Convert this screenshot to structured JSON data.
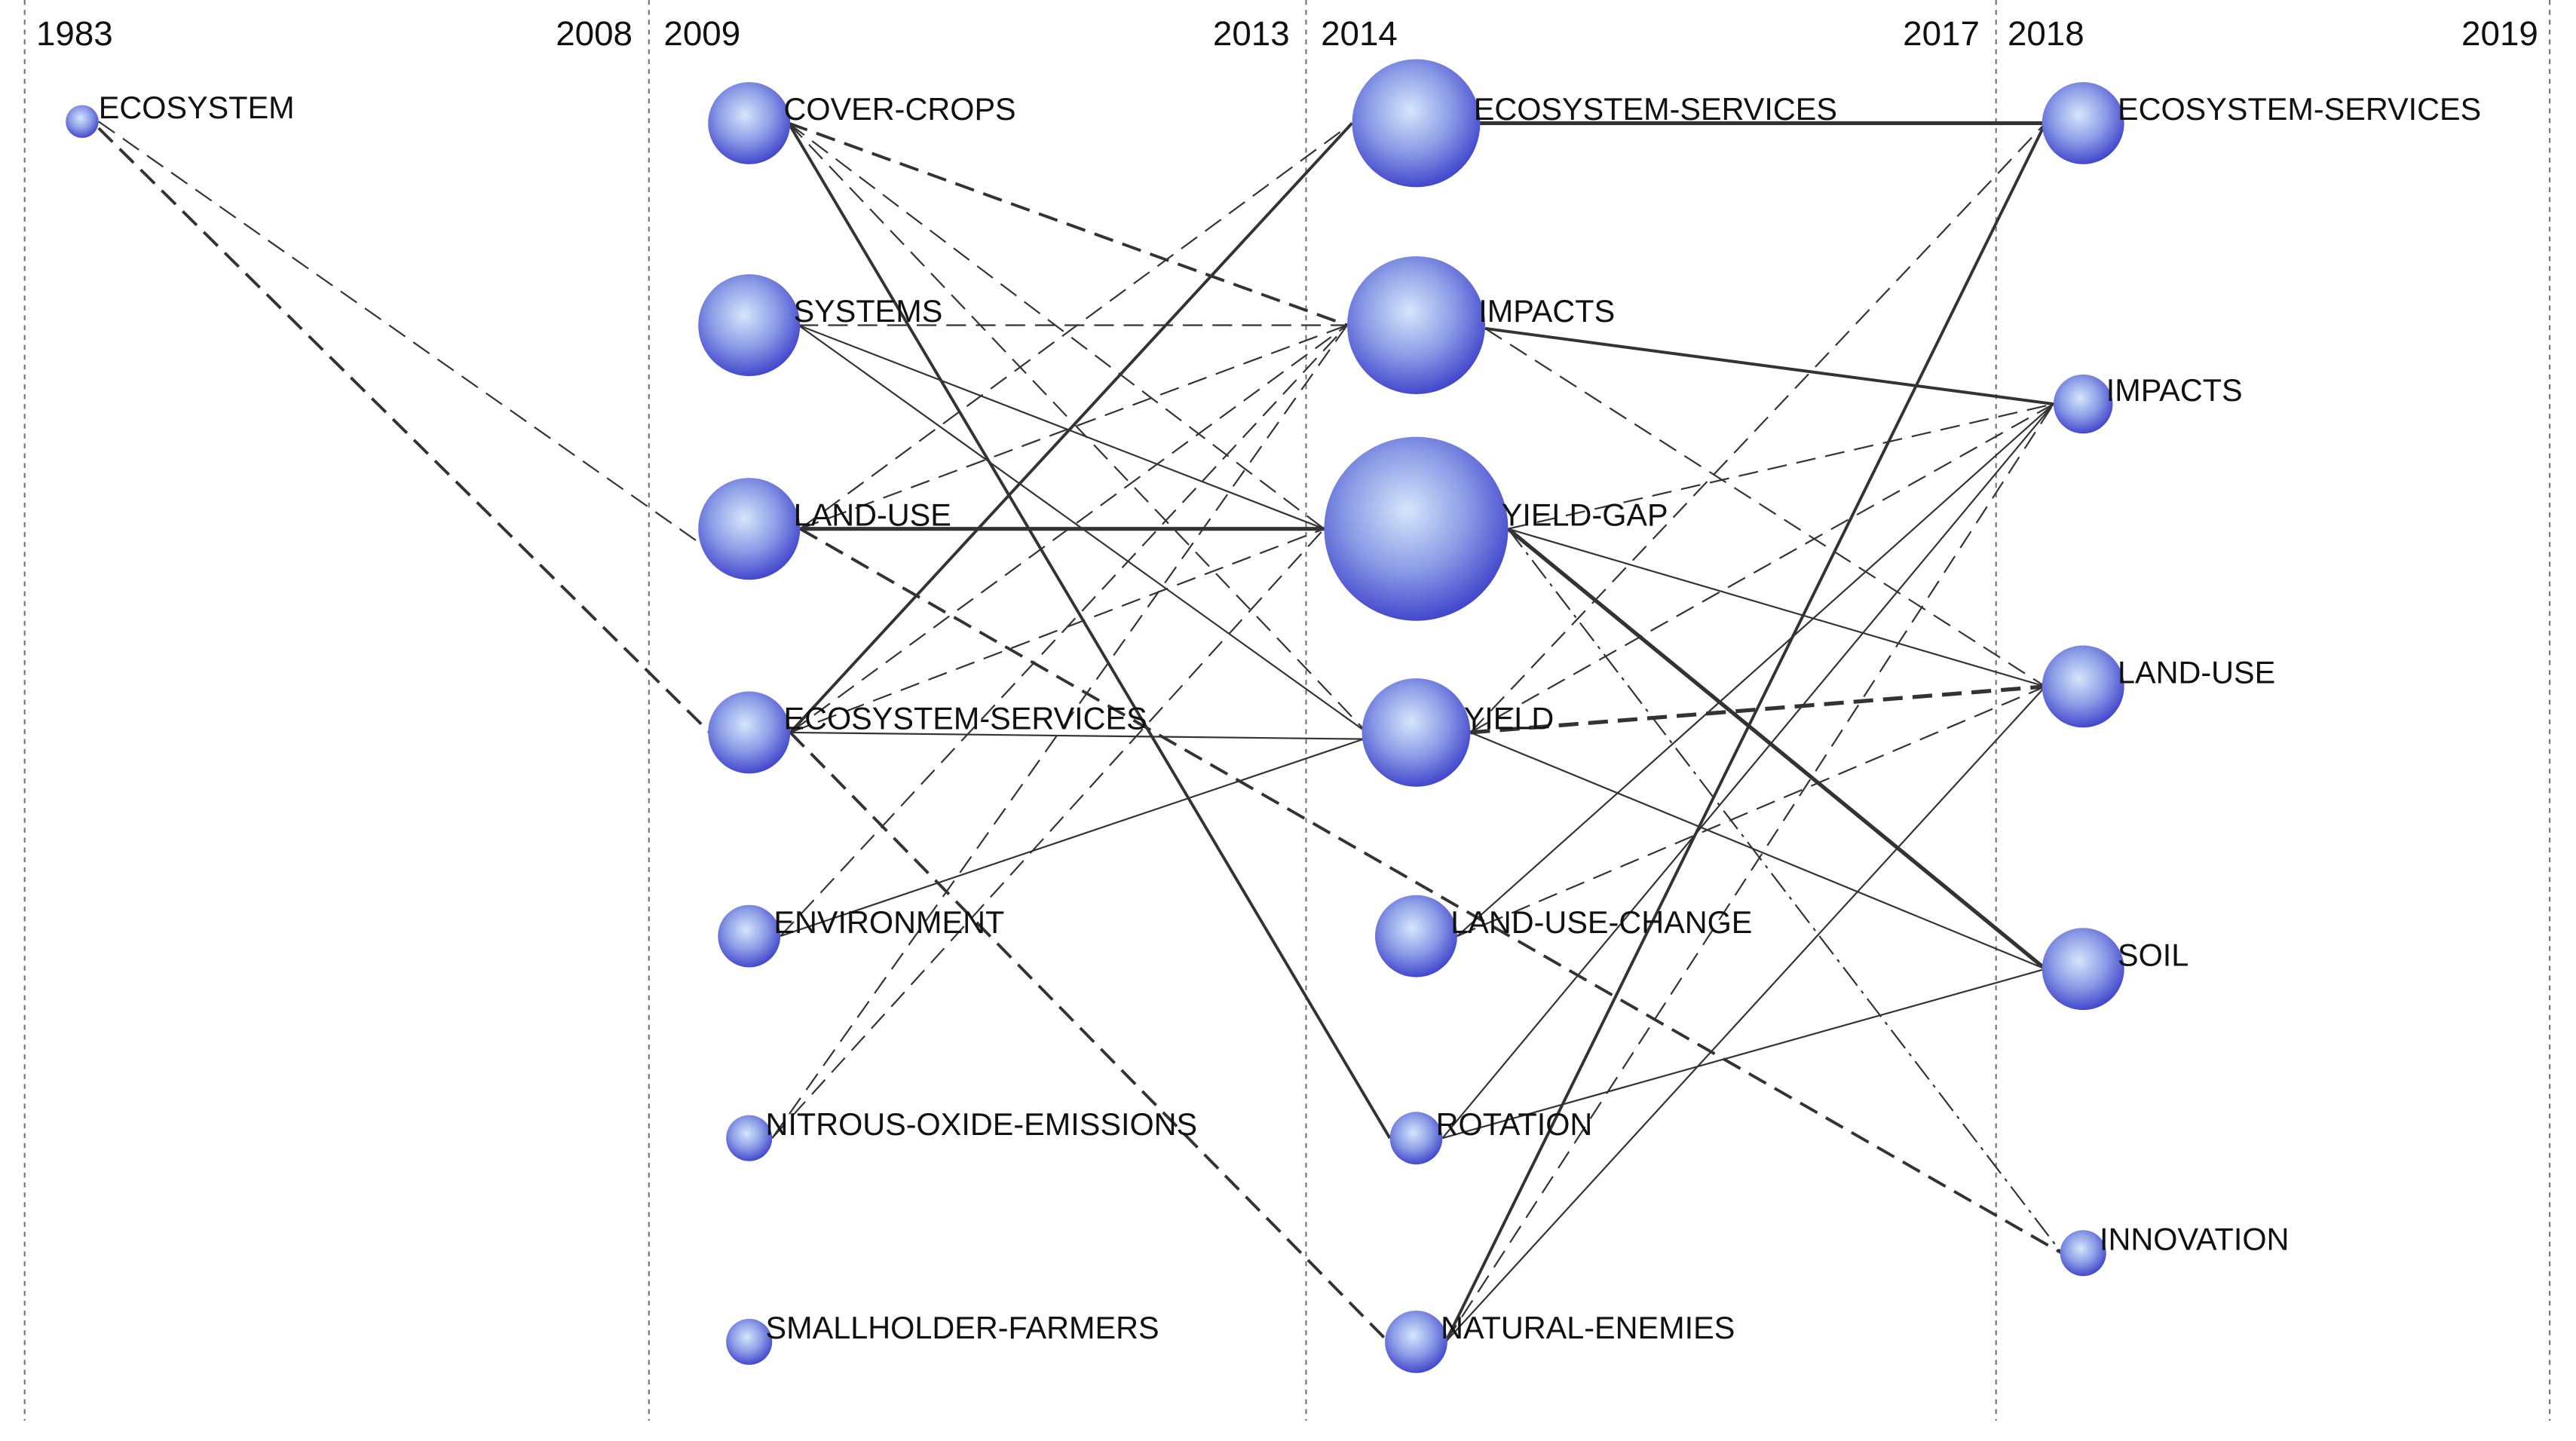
{
  "periods": [
    {
      "start": "1983",
      "end": "2008",
      "nodes": [
        "ECOSYSTEM"
      ]
    },
    {
      "start": "2009",
      "end": "2013",
      "nodes": [
        "COVER-CROPS",
        "SYSTEMS",
        "LAND-USE",
        "ECOSYSTEM-SERVICES",
        "ENVIRONMENT",
        "NITROUS-OXIDE-EMISSIONS",
        "SMALLHOLDER-FARMERS"
      ]
    },
    {
      "start": "2014",
      "end": "2017",
      "nodes": [
        "ECOSYSTEM-SERVICES",
        "IMPACTS",
        "YIELD-GAP",
        "YIELD",
        "LAND-USE-CHANGE",
        "ROTATION",
        "NATURAL-ENEMIES"
      ]
    },
    {
      "start": "2018",
      "end": "2019",
      "nodes": [
        "ECOSYSTEM-SERVICES",
        "IMPACTS",
        "LAND-USE",
        "SOIL",
        "INNOVATION"
      ]
    }
  ]
}
